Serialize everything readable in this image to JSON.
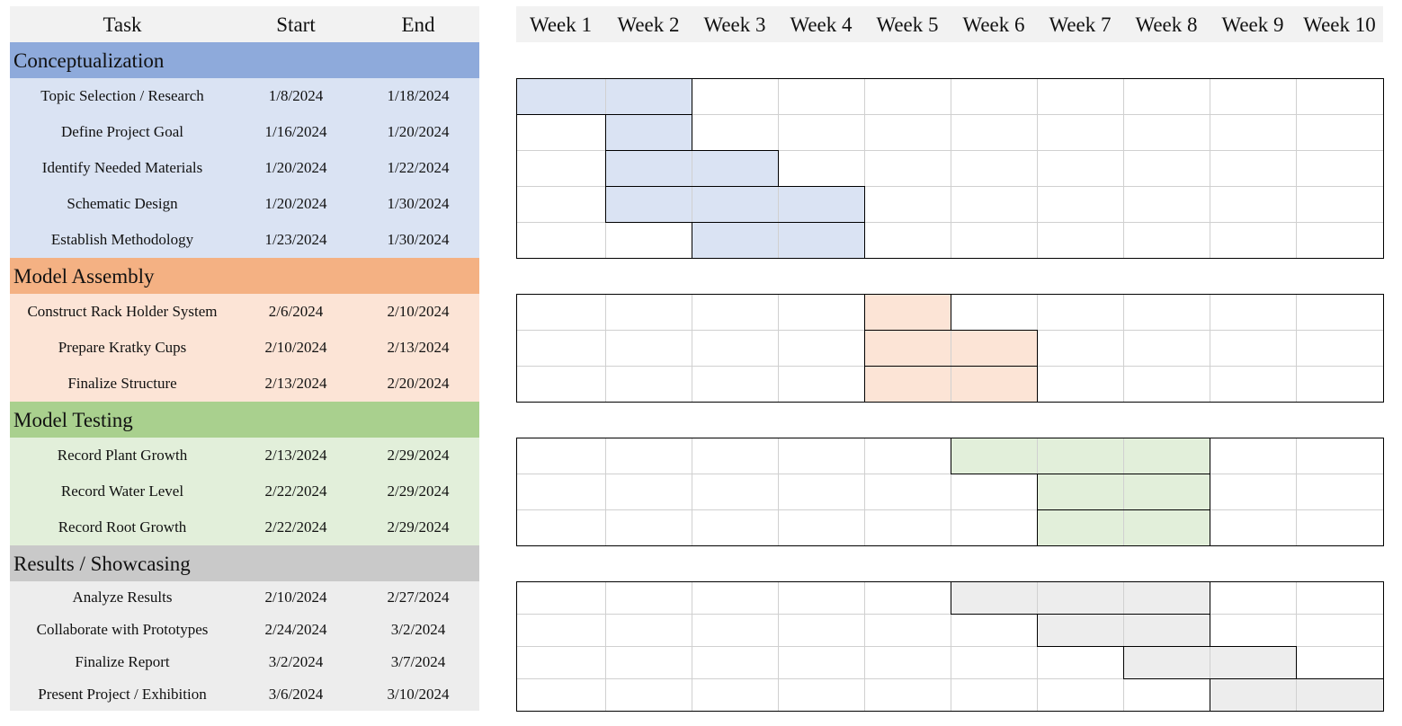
{
  "headers": {
    "task": "Task",
    "start": "Start",
    "end": "End"
  },
  "weeks": [
    "Week 1",
    "Week 2",
    "Week 3",
    "Week 4",
    "Week 5",
    "Week 6",
    "Week 7",
    "Week 8",
    "Week 9",
    "Week 10"
  ],
  "categories": [
    {
      "name": "Conceptualization",
      "header_color": "#8eaadb",
      "row_color": "#dae3f3",
      "bar_color": "#dae3f3",
      "tasks": [
        {
          "task": "Topic Selection / Research",
          "start": "1/8/2024",
          "end": "1/18/2024",
          "week_start": 1,
          "week_end": 2
        },
        {
          "task": "Define Project Goal",
          "start": "1/16/2024",
          "end": "1/20/2024",
          "week_start": 2,
          "week_end": 2
        },
        {
          "task": "Identify Needed Materials",
          "start": "1/20/2024",
          "end": "1/22/2024",
          "week_start": 2,
          "week_end": 3
        },
        {
          "task": "Schematic Design",
          "start": "1/20/2024",
          "end": "1/30/2024",
          "week_start": 2,
          "week_end": 4
        },
        {
          "task": "Establish Methodology",
          "start": "1/23/2024",
          "end": "1/30/2024",
          "week_start": 3,
          "week_end": 4
        }
      ]
    },
    {
      "name": "Model Assembly",
      "header_color": "#f4b183",
      "row_color": "#fce4d6",
      "bar_color": "#fce4d6",
      "tasks": [
        {
          "task": "Construct Rack Holder System",
          "start": "2/6/2024",
          "end": "2/10/2024",
          "week_start": 5,
          "week_end": 5
        },
        {
          "task": "Prepare Kratky Cups",
          "start": "2/10/2024",
          "end": "2/13/2024",
          "week_start": 5,
          "week_end": 6
        },
        {
          "task": "Finalize Structure",
          "start": "2/13/2024",
          "end": "2/20/2024",
          "week_start": 5,
          "week_end": 6
        }
      ]
    },
    {
      "name": "Model Testing",
      "header_color": "#a9d08e",
      "row_color": "#e2efda",
      "bar_color": "#e2efda",
      "tasks": [
        {
          "task": "Record Plant Growth",
          "start": "2/13/2024",
          "end": "2/29/2024",
          "week_start": 6,
          "week_end": 8
        },
        {
          "task": "Record Water Level",
          "start": "2/22/2024",
          "end": "2/29/2024",
          "week_start": 7,
          "week_end": 8
        },
        {
          "task": "Record Root Growth",
          "start": "2/22/2024",
          "end": "2/29/2024",
          "week_start": 7,
          "week_end": 8
        }
      ]
    },
    {
      "name": "Results / Showcasing",
      "header_color": "#c9c9c9",
      "row_color": "#ededed",
      "bar_color": "#ededed",
      "tasks": [
        {
          "task": "Analyze Results",
          "start": "2/10/2024",
          "end": "2/27/2024",
          "week_start": 6,
          "week_end": 8
        },
        {
          "task": "Collaborate with Prototypes",
          "start": "2/24/2024",
          "end": "3/2/2024",
          "week_start": 7,
          "week_end": 8
        },
        {
          "task": "Finalize Report",
          "start": "3/2/2024",
          "end": "3/7/2024",
          "week_start": 8,
          "week_end": 9
        },
        {
          "task": "Present Project / Exhibition",
          "start": "3/6/2024",
          "end": "3/10/2024",
          "week_start": 9,
          "week_end": 10
        }
      ]
    }
  ],
  "chart_data": {
    "type": "gantt",
    "title": "",
    "x_categories": [
      "Week 1",
      "Week 2",
      "Week 3",
      "Week 4",
      "Week 5",
      "Week 6",
      "Week 7",
      "Week 8",
      "Week 9",
      "Week 10"
    ],
    "columns": [
      "Task",
      "Start",
      "End"
    ]
  }
}
